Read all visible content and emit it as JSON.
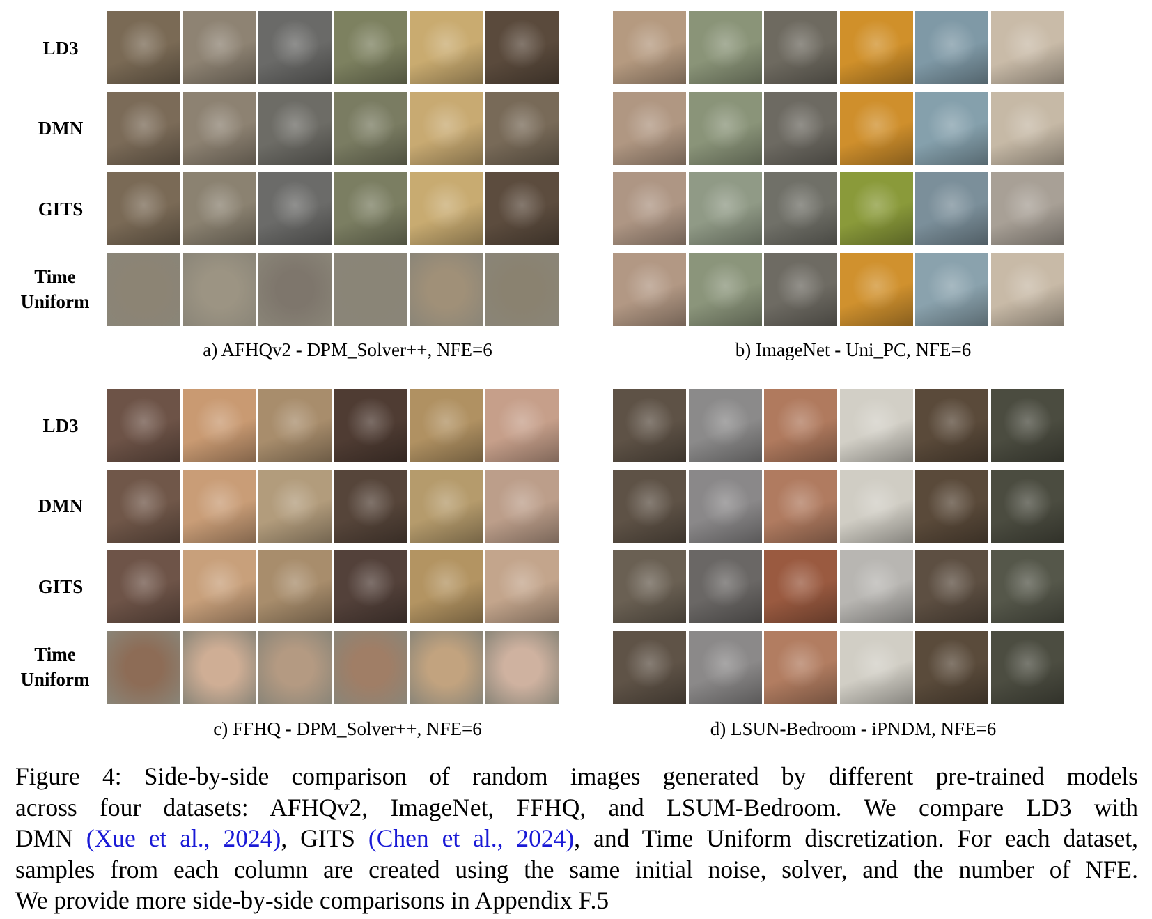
{
  "row_labels": [
    "LD3",
    "DMN",
    "GITS",
    "Time Uniform"
  ],
  "panels": [
    {
      "id": "a",
      "caption": "a) AFHQv2 - DPM_Solver++, NFE=6",
      "thumb_colors": [
        [
          "#7a6a55",
          "#8e8373",
          "#6a6a68",
          "#7d8160",
          "#c9ab70",
          "#5a4a3c"
        ],
        [
          "#7b6b58",
          "#8d8272",
          "#6d6c66",
          "#7a7c62",
          "#c8aa72",
          "#786a58"
        ],
        [
          "#7a6a56",
          "#8b8271",
          "#6b6b69",
          "#7b7e62",
          "#c8ab71",
          "#5c4c3e"
        ],
        [
          "#8c8474",
          "#9c9483",
          "#7e766c",
          "#8a8577",
          "#a09078",
          "#8a8270"
        ]
      ]
    },
    {
      "id": "b",
      "caption": "b) ImageNet - Uni_PC, NFE=6",
      "thumb_colors": [
        [
          "#b59a80",
          "#8a9478",
          "#6e6a60",
          "#d0902a",
          "#7f99a6",
          "#c9bba8"
        ],
        [
          "#b09782",
          "#8a9479",
          "#6d6a62",
          "#cf8f2c",
          "#85a0ac",
          "#c6b9a6"
        ],
        [
          "#ae9684",
          "#909a86",
          "#707068",
          "#8a9a3a",
          "#7b8f9a",
          "#a8a096"
        ],
        [
          "#b29884",
          "#8b957b",
          "#6e6b63",
          "#d0912e",
          "#8aa2ad",
          "#c8baa7"
        ]
      ]
    },
    {
      "id": "c",
      "caption": "c) FFHQ - DPM_Solver++, NFE=6",
      "thumb_colors": [
        [
          "#6d5347",
          "#c99a72",
          "#a88d6c",
          "#4f3c33",
          "#b09162",
          "#c69f8a"
        ],
        [
          "#705749",
          "#c99d77",
          "#b29c7c",
          "#56453a",
          "#b59b6c",
          "#bc9e8a"
        ],
        [
          "#6e5448",
          "#c8a07b",
          "#a88d6c",
          "#53413a",
          "#b39462",
          "#c3a58c"
        ],
        [
          "#8d6c56",
          "#cfae95",
          "#b49a82",
          "#a07e66",
          "#c2a37f",
          "#cfb2a0"
        ]
      ]
    },
    {
      "id": "d",
      "caption": "d) LSUN-Bedroom - iPNDM, NFE=6",
      "thumb_colors": [
        [
          "#5e5246",
          "#8b8a8a",
          "#b07a5e",
          "#d2cfc6",
          "#5a4a3a",
          "#4b4c40"
        ],
        [
          "#5e5246",
          "#8a8889",
          "#b07b60",
          "#d0cdc4",
          "#5a4a3a",
          "#4b4c40"
        ],
        [
          "#6a6053",
          "#6a6765",
          "#9a5a40",
          "#b8b6b2",
          "#5d4f42",
          "#55574a"
        ],
        [
          "#5f5347",
          "#8b8989",
          "#b27d61",
          "#d1cec5",
          "#5a4b3b",
          "#4c4d41"
        ]
      ]
    }
  ],
  "figure_caption": {
    "lines": [
      [
        "Figure 4:  Side-by-side comparison of random images generated by different pre-trained models"
      ],
      [
        "across four datasets:  AFHQv2, ImageNet, FFHQ, and LSUM-Bedroom.  We compare LD3 with"
      ],
      [
        "DMN ",
        "(Xue et al., 2024)",
        ", GITS ",
        "(Chen et al., 2024)",
        ", and Time Uniform discretization. For each dataset,"
      ],
      [
        "samples from each column are created using the same initial noise, solver, and the number of NFE."
      ],
      [
        "We provide more side-by-side comparisons in Appendix F.5"
      ]
    ],
    "l3_p0": "DMN ",
    "l3_cite1": "(Xue et al., 2024)",
    "l3_p1": ", GITS ",
    "l3_cite2": "(Chen et al., 2024)",
    "l3_p2": ", and Time Uniform discretization. For each dataset,"
  }
}
